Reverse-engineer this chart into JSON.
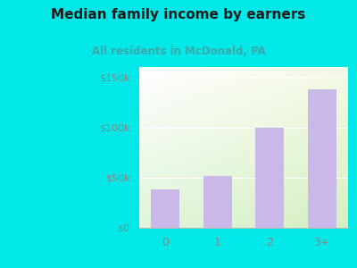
{
  "title": "Median family income by earners",
  "subtitle": "All residents in McDonald, PA",
  "categories": [
    "0",
    "1",
    "2",
    "3+"
  ],
  "values": [
    38000,
    52000,
    100000,
    138000
  ],
  "bar_color": "#c9b8e8",
  "title_color": "#1a1a1a",
  "subtitle_color": "#3aaaaa",
  "outer_bg_color": "#00e8e8",
  "yticks": [
    0,
    50000,
    100000,
    150000
  ],
  "ytick_labels": [
    "$0",
    "$50k",
    "$100k",
    "$150k"
  ],
  "ylim": [
    0,
    160000
  ],
  "grid_color": "#dddddd",
  "tick_label_color": "#888888"
}
